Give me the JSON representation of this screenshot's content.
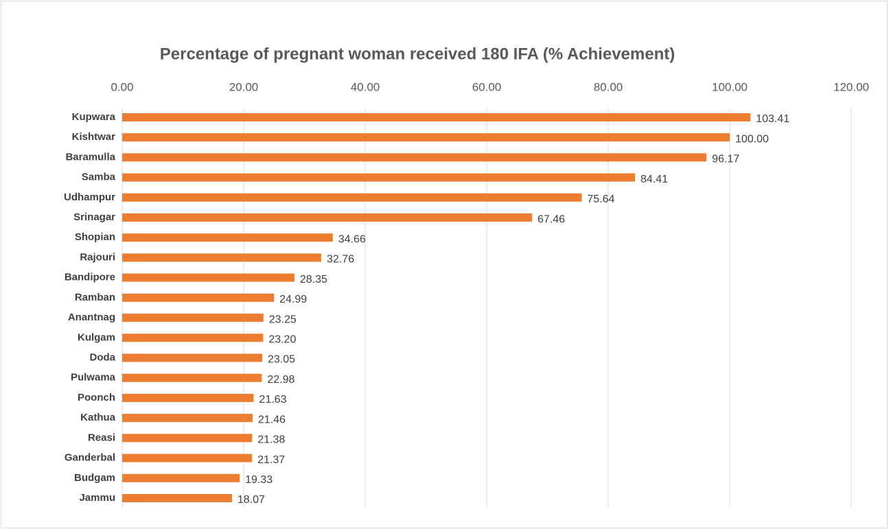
{
  "chart_data": {
    "type": "bar",
    "orientation": "horizontal",
    "title": "Percentage of pregnant woman received 180 IFA (% Achievement)",
    "categories": [
      "Kupwara",
      "Kishtwar",
      "Baramulla",
      "Samba",
      "Udhampur",
      "Srinagar",
      "Shopian",
      "Rajouri",
      "Bandipore",
      "Ramban",
      "Anantnag",
      "Kulgam",
      "Doda",
      "Pulwama",
      "Poonch",
      "Kathua",
      "Reasi",
      "Ganderbal",
      "Budgam",
      "Jammu"
    ],
    "values": [
      103.41,
      100,
      96.17,
      84.41,
      75.64,
      67.46,
      34.66,
      32.76,
      28.35,
      24.99,
      23.25,
      23.2,
      23.05,
      22.98,
      21.63,
      21.46,
      21.38,
      21.37,
      19.33,
      18.07
    ],
    "value_labels": [
      "103.41",
      "100.00",
      "96.17",
      "84.41",
      "75.64",
      "67.46",
      "34.66",
      "32.76",
      "28.35",
      "24.99",
      "23.25",
      "23.20",
      "23.05",
      "22.98",
      "21.63",
      "21.46",
      "21.38",
      "21.37",
      "19.33",
      "18.07"
    ],
    "color": "#ed7d31",
    "xlim": [
      0,
      120
    ],
    "xticks": [
      {
        "value": 0,
        "label": "0.00"
      },
      {
        "value": 20,
        "label": "20.00"
      },
      {
        "value": 40,
        "label": "40.00"
      },
      {
        "value": 60,
        "label": "60.00"
      },
      {
        "value": 80,
        "label": "80.00"
      },
      {
        "value": 100,
        "label": "100.00"
      },
      {
        "value": 120,
        "label": "120.00"
      }
    ],
    "grid": true
  }
}
